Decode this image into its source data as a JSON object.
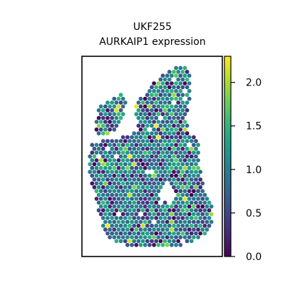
{
  "chart_data": {
    "type": "scatter",
    "title_lines": [
      "UKF255",
      "AURKAIP1 expression"
    ],
    "xlabel": "",
    "ylabel": "",
    "grid": false,
    "colormap": "viridis",
    "colorbar": {
      "range": [
        0.0,
        2.3
      ],
      "ticks": [
        0.0,
        0.5,
        1.0,
        1.5,
        2.0
      ],
      "tick_labels": [
        "0.0",
        "0.5",
        "1.0",
        "1.5",
        "2.0"
      ]
    },
    "colors": {
      "viridis_stops": [
        "#440154",
        "#482878",
        "#3e4989",
        "#31688e",
        "#26828e",
        "#1f9e89",
        "#35b779",
        "#6ece58",
        "#b5de2b",
        "#fde725"
      ],
      "frame": "#000000",
      "hole": "#ffffff"
    },
    "spots": {
      "marker": "circle",
      "pattern": "hexagonal spatial grid",
      "column_ranges": [
        [
          0.08,
          0.78
        ],
        [
          0.04,
          0.72
        ],
        [
          0.03,
          0.74
        ],
        [
          0.06,
          0.76
        ],
        [
          0.09,
          0.8
        ],
        [
          0.12,
          0.82
        ],
        [
          0.15,
          0.84
        ],
        [
          0.18,
          0.86
        ],
        [
          0.2,
          0.86
        ],
        [
          0.18,
          0.86
        ],
        [
          0.16,
          0.88
        ],
        [
          0.18,
          0.9
        ],
        [
          0.22,
          0.91
        ]
      ],
      "tissue_rows": [
        [
          0.12,
          0.7
        ],
        [
          0.16,
          0.86
        ],
        [
          0.24,
          0.98
        ],
        [
          0.32,
          1.0
        ],
        [
          0.4,
          1.0
        ],
        [
          0.48,
          0.98
        ],
        [
          0.56,
          0.96
        ],
        [
          0.64,
          0.95
        ],
        [
          0.72,
          0.94
        ],
        [
          0.8,
          0.92
        ],
        [
          0.86,
          0.9
        ],
        [
          0.92,
          0.88
        ]
      ],
      "value_distribution": {
        "mean": 0.95,
        "sd": 0.38,
        "high_fraction": 0.03,
        "max": 2.3
      }
    }
  }
}
